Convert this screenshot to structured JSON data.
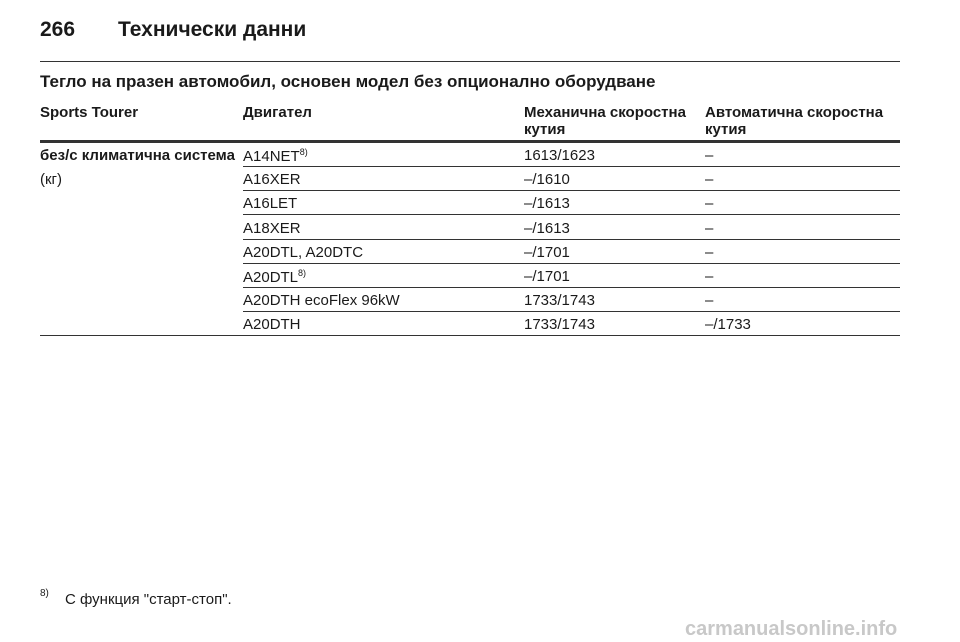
{
  "header": {
    "page_number": "266",
    "title": "Технически данни"
  },
  "section_title": "Тегло на празен автомобил, основен модел без опционално оборудване",
  "table": {
    "columns": [
      "Sports Tourer",
      "Двигател",
      "Механична скоростна кутия",
      "Автоматична скоростна кутия"
    ],
    "row_label": "без/с климатична система",
    "unit": "(кг)",
    "rows": [
      {
        "engine": "A14NET",
        "note": "8)",
        "manual": "1613/1623",
        "automatic": "–"
      },
      {
        "engine": "A16XER",
        "manual": "–/1610",
        "automatic": "–"
      },
      {
        "engine": "A16LET",
        "manual": "–/1613",
        "automatic": "–"
      },
      {
        "engine": "A18XER",
        "manual": "–/1613",
        "automatic": "–"
      },
      {
        "engine": "A20DTL, A20DTC",
        "manual": "–/1701",
        "automatic": "–"
      },
      {
        "engine": "A20DTL",
        "note": "8)",
        "manual": "–/1701",
        "automatic": "–"
      },
      {
        "engine": "A20DTH ecoFlex 96kW",
        "manual": "1733/1743",
        "automatic": "–"
      },
      {
        "engine": "A20DTH",
        "manual": "1733/1743",
        "automatic": "–/1733"
      }
    ]
  },
  "footnote": {
    "mark": "8)",
    "text": "С функция \"старт-стоп\"."
  },
  "watermark": "carmanualsonline.info"
}
